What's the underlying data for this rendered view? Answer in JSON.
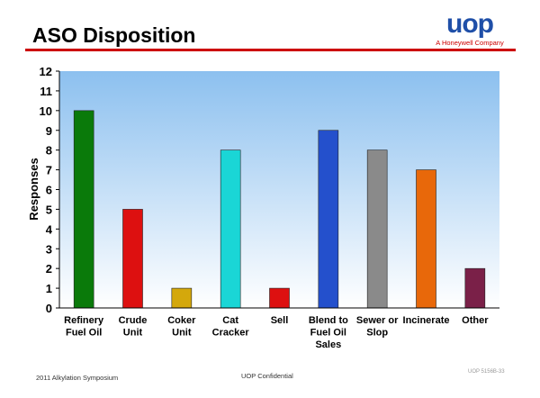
{
  "slide": {
    "title": "ASO Disposition",
    "logo": {
      "mark": "uop",
      "subtitle": "A Honeywell Company"
    },
    "footer_left": "2011 Alkylation Symposium",
    "footer_center": "UOP Confidential",
    "footer_right": "UOP 5156B-33"
  },
  "colors": {
    "title_rule": "#cc0000",
    "logo_blue": "#1f4fa8",
    "logo_red": "#cc0000",
    "plot_bg_top": "#8cc0ef",
    "plot_bg_bottom": "#ffffff"
  },
  "chart_data": {
    "type": "bar",
    "title": "",
    "xlabel": "",
    "ylabel": "Responses",
    "ylim": [
      0,
      12
    ],
    "yticks": [
      0,
      1,
      2,
      3,
      4,
      5,
      6,
      7,
      8,
      9,
      10,
      11,
      12
    ],
    "grid": false,
    "legend": "none",
    "categories": [
      [
        "Refinery",
        "Fuel Oil"
      ],
      [
        "Crude",
        "Unit"
      ],
      [
        "Coker",
        "Unit"
      ],
      [
        "Cat",
        "Cracker"
      ],
      [
        "Sell"
      ],
      [
        "Blend to",
        "Fuel Oil",
        "Sales"
      ],
      [
        "Sewer or",
        "Slop"
      ],
      [
        "Incinerate"
      ],
      [
        "Other"
      ]
    ],
    "values": [
      10,
      5,
      1,
      8,
      1,
      9,
      8,
      7,
      2
    ],
    "bar_colors": [
      "#0a7a0a",
      "#dd1010",
      "#d4a80c",
      "#1ad6d6",
      "#dd1010",
      "#2450cc",
      "#8a8a8a",
      "#e8680a",
      "#7a2048"
    ]
  }
}
